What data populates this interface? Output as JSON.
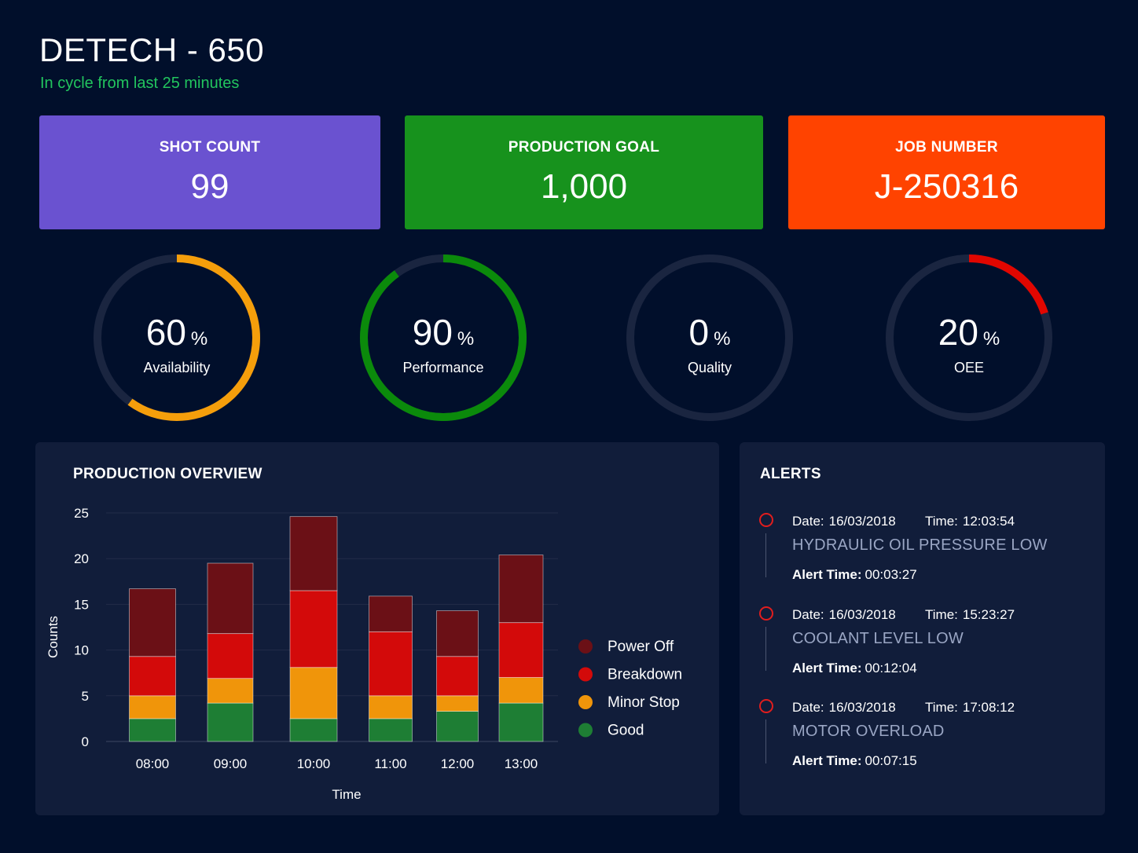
{
  "header": {
    "title": "DETECH - 650",
    "status": "In cycle from last 25 minutes",
    "status_color": "#22c55e"
  },
  "kpis": [
    {
      "label": "SHOT COUNT",
      "value": "99",
      "color": "#6a52d0"
    },
    {
      "label": "PRODUCTION GOAL",
      "value": "1,000",
      "color": "#17921d"
    },
    {
      "label": "JOB NUMBER",
      "value": "J-250316",
      "color": "#ff4300"
    }
  ],
  "gauges": [
    {
      "value": 60,
      "value_text": "60",
      "unit": "%",
      "label": "Availability",
      "color": "#f59e0b"
    },
    {
      "value": 90,
      "value_text": "90",
      "unit": "%",
      "label": "Performance",
      "color": "#0b8a0b"
    },
    {
      "value": 0,
      "value_text": "0",
      "unit": "%",
      "label": "Quality",
      "color": "#1f2a44"
    },
    {
      "value": 20,
      "value_text": "20",
      "unit": "%",
      "label": "OEE",
      "color": "#e10600"
    }
  ],
  "production": {
    "title": "PRODUCTION OVERVIEW"
  },
  "chart_data": {
    "type": "bar",
    "stacked": true,
    "categories": [
      "08:00",
      "09:00",
      "10:00",
      "11:00",
      "12:00",
      "13:00"
    ],
    "series": [
      {
        "name": "Good",
        "values": [
          2.5,
          4.2,
          2.5,
          2.5,
          3.3,
          4.2
        ],
        "color": "#1e7e34"
      },
      {
        "name": "Minor Stop",
        "values": [
          2.5,
          2.7,
          5.6,
          2.5,
          1.7,
          2.8
        ],
        "color": "#f0950a"
      },
      {
        "name": "Breakdown",
        "values": [
          4.3,
          4.9,
          8.4,
          7.0,
          4.3,
          6.0
        ],
        "color": "#d30a0a"
      },
      {
        "name": "Power Off",
        "values": [
          7.4,
          7.7,
          8.1,
          3.9,
          5.0,
          7.4
        ],
        "color": "#6b1016"
      }
    ],
    "legend_order": [
      "Power Off",
      "Breakdown",
      "Minor Stop",
      "Good"
    ],
    "legend_position": "right",
    "xlabel": "Time",
    "ylabel": "Counts",
    "ylim": [
      0,
      25
    ],
    "yticks": [
      0,
      5,
      10,
      15,
      20,
      25
    ],
    "grid": true
  },
  "alerts": {
    "title": "ALERTS",
    "date_label": "Date:",
    "time_label": "Time:",
    "duration_label": "Alert Time:",
    "items": [
      {
        "date": "16/03/2018",
        "time": "12:03:54",
        "message": "HYDRAULIC OIL PRESSURE LOW",
        "duration": "00:03:27"
      },
      {
        "date": "16/03/2018",
        "time": "15:23:27",
        "message": "COOLANT LEVEL LOW",
        "duration": "00:12:04"
      },
      {
        "date": "16/03/2018",
        "time": "17:08:12",
        "message": "MOTOR OVERLOAD",
        "duration": "00:07:15"
      }
    ]
  }
}
